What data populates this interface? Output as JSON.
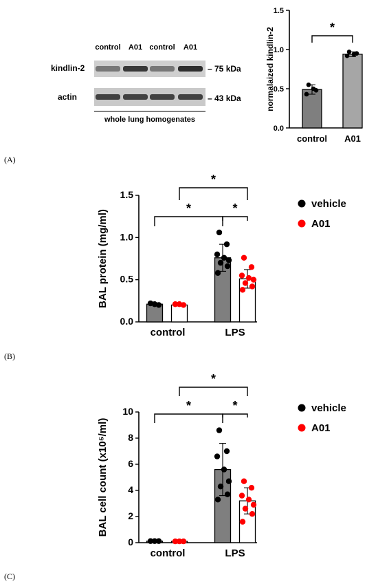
{
  "panels": {
    "A": "(A)",
    "B": "(B)",
    "C": "(C)"
  },
  "blot": {
    "lane_labels": [
      "control",
      "A01",
      "control",
      "A01"
    ],
    "rows": [
      {
        "name": "kindlin-2",
        "marker": "– 75 kDa",
        "intensities": [
          0.45,
          0.8,
          0.45,
          0.85
        ]
      },
      {
        "name": "actin",
        "marker": "– 43 kDa",
        "intensities": [
          0.75,
          0.75,
          0.75,
          0.75
        ]
      }
    ],
    "caption": "whole lung homogenates"
  },
  "chart_data": [
    {
      "id": "A",
      "type": "bar",
      "ylabel": "normalaized kindlin-2",
      "ylim": [
        0,
        1.5
      ],
      "yticks": [
        "0.0",
        "0.5",
        "1.0",
        "1.5"
      ],
      "categories": [
        "control",
        "A01"
      ],
      "series": [
        {
          "values": [
            0.49,
            0.94
          ],
          "errors": [
            0.06,
            0.03
          ],
          "colors": [
            "#7f7f7f",
            "#a6a6a6"
          ],
          "point_color": "#000000",
          "points": [
            [
              0.55,
              0.48,
              0.43,
              0.5
            ],
            [
              0.97,
              0.95,
              0.92,
              0.94
            ]
          ]
        }
      ],
      "significance": [
        {
          "from": 0,
          "to": 1,
          "label": "*"
        }
      ]
    },
    {
      "id": "B",
      "type": "bar",
      "ylabel": "BAL protein (mg/ml)",
      "ylim": [
        0,
        1.5
      ],
      "yticks": [
        "0.0",
        "0.5",
        "1.0",
        "1.5"
      ],
      "categories": [
        "control",
        "LPS"
      ],
      "series": [
        {
          "name": "vehicle",
          "color": "#7f7f7f",
          "point_color": "#000000",
          "values": [
            0.21,
            0.76
          ],
          "errors": [
            0.01,
            0.16
          ],
          "points": [
            [
              0.22,
              0.21,
              0.2
            ],
            [
              1.06,
              0.92,
              0.8,
              0.76,
              0.73,
              0.7,
              0.66,
              0.58
            ]
          ]
        },
        {
          "name": "A01",
          "color": "#ffffff",
          "point_color": "#ff0000",
          "values": [
            0.2,
            0.51
          ],
          "errors": [
            0.01,
            0.11
          ],
          "points": [
            [
              0.21,
              0.21,
              0.2
            ],
            [
              0.76,
              0.65,
              0.55,
              0.52,
              0.5,
              0.46,
              0.42,
              0.38
            ]
          ]
        }
      ],
      "significance": [
        {
          "label": "*",
          "level": 1
        },
        {
          "label": "*",
          "level": 2
        },
        {
          "label": "*",
          "level": 3
        }
      ],
      "legend": [
        "vehicle",
        "A01"
      ]
    },
    {
      "id": "C",
      "type": "bar",
      "ylabel": "BAL cell count (x10⁵/ml)",
      "ylim": [
        0,
        10
      ],
      "yticks": [
        "0",
        "2",
        "4",
        "6",
        "8",
        "10"
      ],
      "categories": [
        "control",
        "LPS"
      ],
      "series": [
        {
          "name": "vehicle",
          "color": "#7f7f7f",
          "point_color": "#000000",
          "values": [
            0.12,
            5.6
          ],
          "errors": [
            0.02,
            2.0
          ],
          "points": [
            [
              0.12,
              0.12,
              0.12
            ],
            [
              8.6,
              7.0,
              6.6,
              5.6,
              4.7,
              4.3,
              3.7,
              3.3
            ]
          ]
        },
        {
          "name": "A01",
          "color": "#ffffff",
          "point_color": "#ff0000",
          "values": [
            0.1,
            3.2
          ],
          "errors": [
            0.02,
            1.0
          ],
          "points": [
            [
              0.1,
              0.1,
              0.1
            ],
            [
              4.7,
              4.2,
              3.6,
              3.3,
              2.9,
              2.6,
              2.2,
              1.6
            ]
          ]
        }
      ],
      "significance": [
        {
          "label": "*",
          "level": 1
        },
        {
          "label": "*",
          "level": 2
        },
        {
          "label": "*",
          "level": 3
        }
      ],
      "legend": [
        "vehicle",
        "A01"
      ]
    }
  ]
}
